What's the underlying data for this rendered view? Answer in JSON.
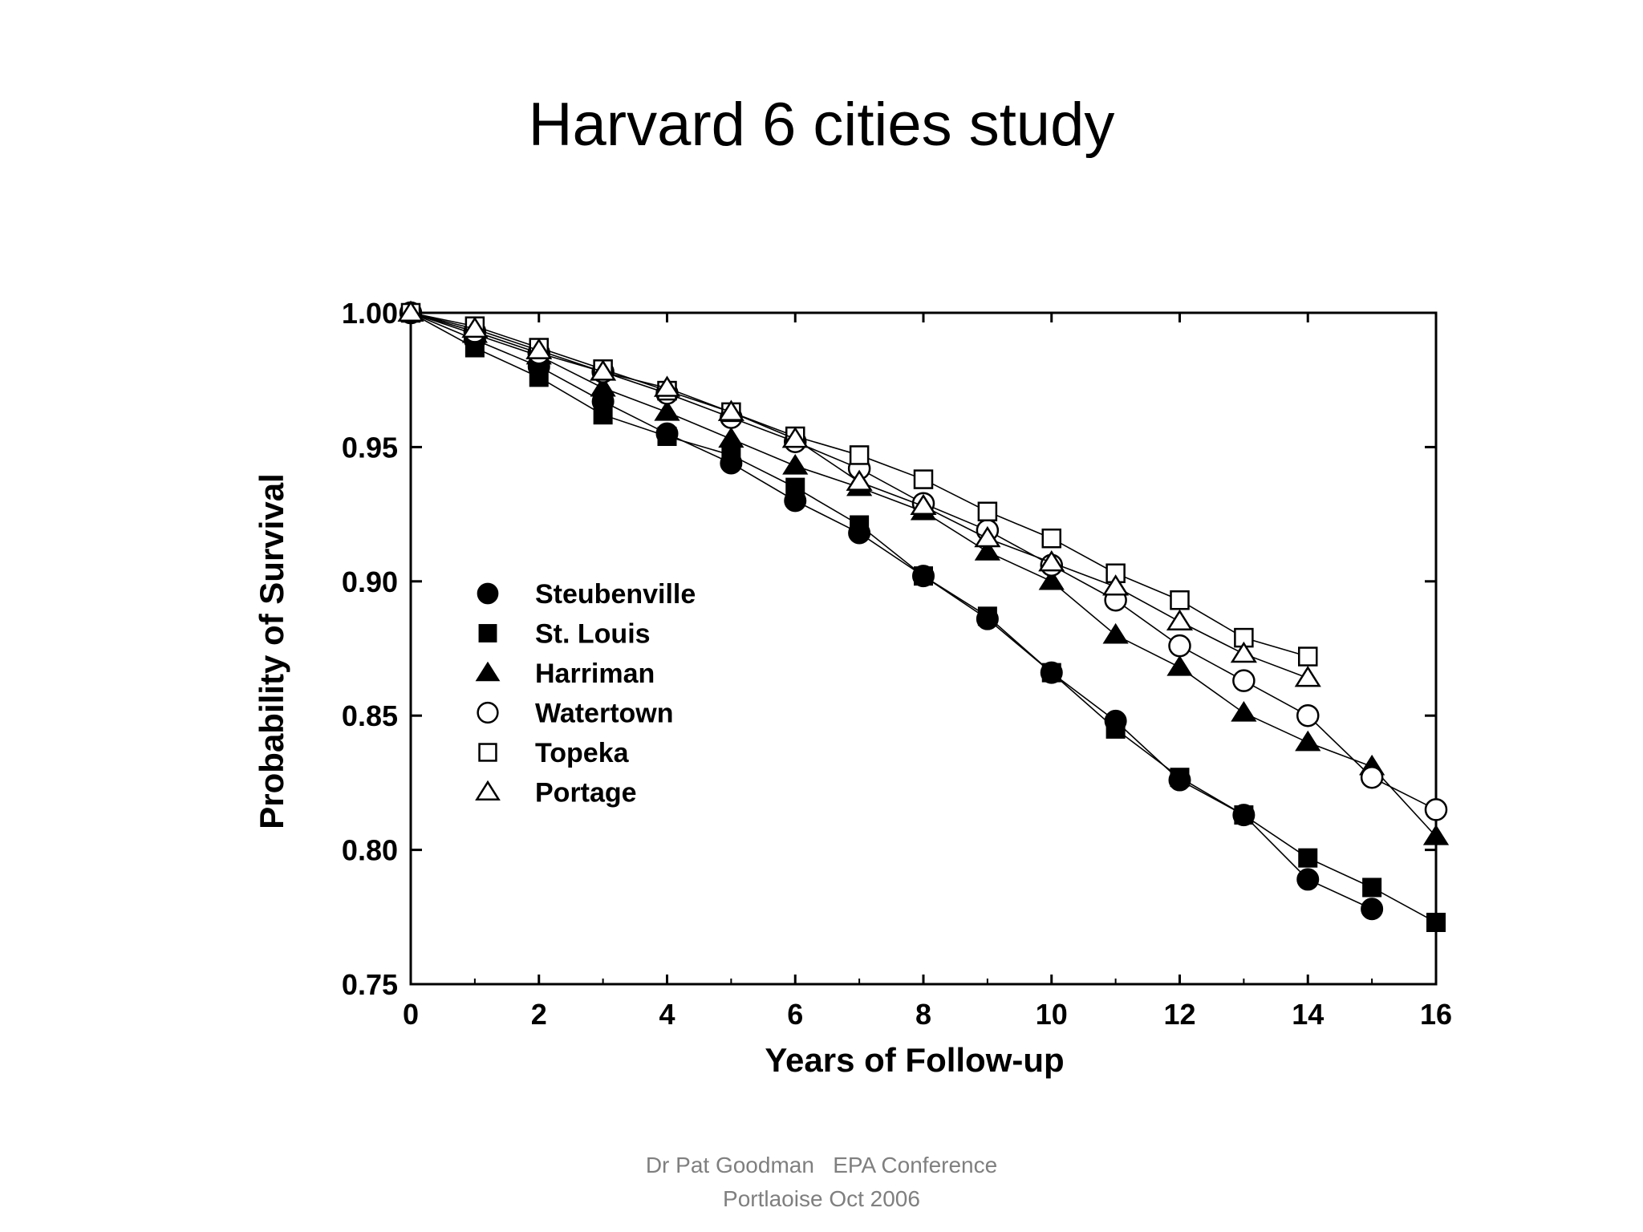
{
  "slide": {
    "title": "Harvard 6 cities study"
  },
  "footer": {
    "line1": "Dr Pat Goodman   EPA Conference",
    "line2": "Portlaoise Oct 2006"
  },
  "chart_data": {
    "type": "line",
    "xlabel": "Years of Follow-up",
    "ylabel": "Probability of Survival",
    "xlim": [
      0,
      16
    ],
    "ylim": [
      0.75,
      1.0
    ],
    "xticks": [
      "0",
      "2",
      "4",
      "6",
      "8",
      "10",
      "12",
      "14",
      "16"
    ],
    "yticks": [
      "0.75",
      "0.80",
      "0.85",
      "0.90",
      "0.95",
      "1.00"
    ],
    "grid": false,
    "legend_position": "left-middle",
    "series": [
      {
        "name": "Steubenville",
        "marker": "filled-circle",
        "x": [
          0,
          1,
          2,
          3,
          4,
          5,
          6,
          7,
          8,
          9,
          10,
          11,
          12,
          13,
          14,
          15
        ],
        "y": [
          1.0,
          0.99,
          0.98,
          0.967,
          0.955,
          0.944,
          0.93,
          0.918,
          0.902,
          0.886,
          0.866,
          0.848,
          0.826,
          0.813,
          0.789,
          0.778
        ]
      },
      {
        "name": "St. Louis",
        "marker": "filled-square",
        "x": [
          0,
          1,
          2,
          3,
          4,
          5,
          6,
          7,
          8,
          9,
          10,
          11,
          12,
          13,
          14,
          15,
          16
        ],
        "y": [
          1.0,
          0.987,
          0.976,
          0.962,
          0.954,
          0.947,
          0.935,
          0.921,
          0.902,
          0.887,
          0.866,
          0.845,
          0.827,
          0.813,
          0.797,
          0.786,
          0.773
        ]
      },
      {
        "name": "Harriman",
        "marker": "filled-triangle",
        "x": [
          0,
          1,
          2,
          3,
          4,
          5,
          6,
          7,
          8,
          9,
          10,
          11,
          12,
          13,
          14,
          15,
          16
        ],
        "y": [
          1.0,
          0.992,
          0.984,
          0.972,
          0.963,
          0.953,
          0.943,
          0.935,
          0.926,
          0.911,
          0.9,
          0.88,
          0.868,
          0.851,
          0.84,
          0.831,
          0.805
        ]
      },
      {
        "name": "Watertown",
        "marker": "open-circle",
        "x": [
          0,
          1,
          2,
          3,
          4,
          5,
          6,
          7,
          8,
          9,
          10,
          11,
          12,
          13,
          14,
          15,
          16
        ],
        "y": [
          1.0,
          0.993,
          0.985,
          0.978,
          0.97,
          0.961,
          0.952,
          0.942,
          0.929,
          0.919,
          0.906,
          0.893,
          0.876,
          0.863,
          0.85,
          0.827,
          0.815
        ]
      },
      {
        "name": "Topeka",
        "marker": "open-square",
        "x": [
          0,
          1,
          2,
          3,
          4,
          5,
          6,
          7,
          8,
          9,
          10,
          11,
          12,
          13,
          14
        ],
        "y": [
          1.0,
          0.995,
          0.987,
          0.979,
          0.971,
          0.963,
          0.954,
          0.947,
          0.938,
          0.926,
          0.916,
          0.903,
          0.893,
          0.879,
          0.872
        ]
      },
      {
        "name": "Portage",
        "marker": "open-triangle",
        "x": [
          0,
          1,
          2,
          3,
          4,
          5,
          6,
          7,
          8,
          9,
          10,
          11,
          12,
          13,
          14
        ],
        "y": [
          1.0,
          0.994,
          0.986,
          0.978,
          0.972,
          0.963,
          0.953,
          0.937,
          0.928,
          0.916,
          0.907,
          0.898,
          0.885,
          0.873,
          0.864
        ]
      }
    ]
  }
}
